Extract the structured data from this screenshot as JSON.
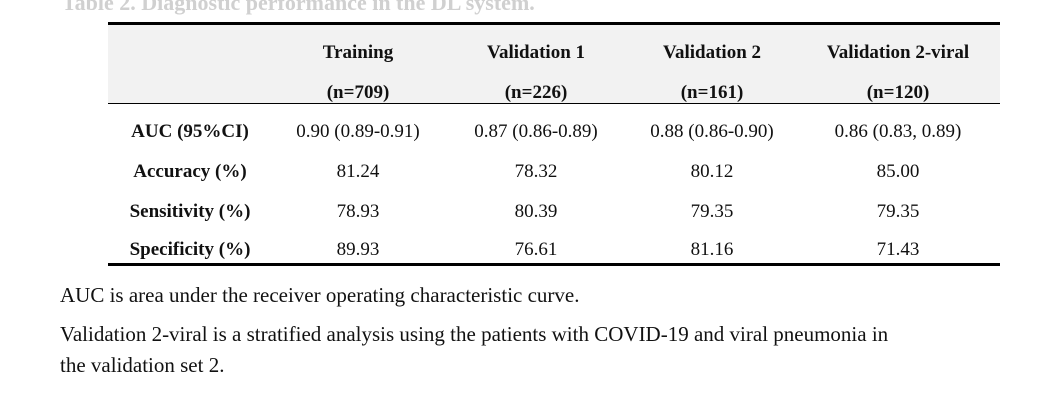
{
  "title": "Table 2. Diagnostic performance in the DL system.",
  "table": {
    "header": [
      {
        "name": "Training",
        "n": "(n=709)"
      },
      {
        "name": "Validation 1",
        "n": "(n=226)"
      },
      {
        "name": "Validation 2",
        "n": "(n=161)"
      },
      {
        "name": "Validation 2-viral",
        "n": "(n=120)"
      }
    ],
    "rows": [
      {
        "label": "AUC (95%CI)",
        "cells": [
          "0.90 (0.89-0.91)",
          "0.87 (0.86-0.89)",
          "0.88 (0.86-0.90)",
          "0.86 (0.83, 0.89)"
        ]
      },
      {
        "label": "Accuracy (%)",
        "cells": [
          "81.24",
          "78.32",
          "80.12",
          "85.00"
        ]
      },
      {
        "label": "Sensitivity (%)",
        "cells": [
          "78.93",
          "80.39",
          "79.35",
          "79.35"
        ]
      },
      {
        "label": "Specificity (%)",
        "cells": [
          "89.93",
          "76.61",
          "81.16",
          "71.43"
        ]
      }
    ]
  },
  "notes": [
    "AUC is area under the receiver operating characteristic curve.",
    "Validation 2-viral is a stratified analysis using the patients with COVID-19 and viral pneumonia in",
    "the validation set 2."
  ]
}
